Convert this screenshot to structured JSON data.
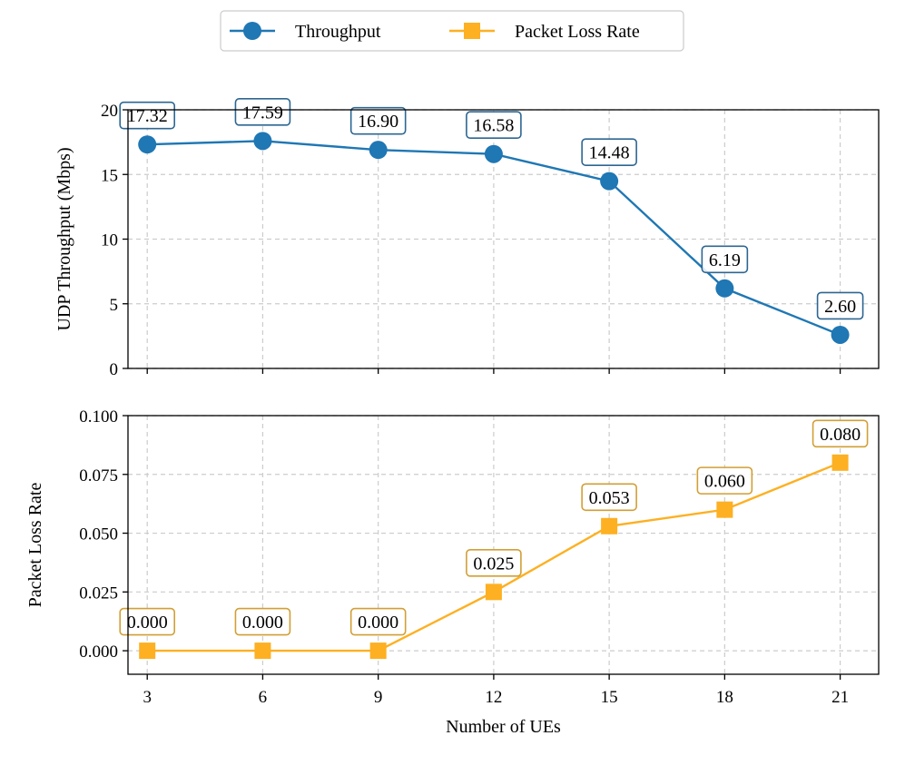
{
  "chart_data": {
    "type": "line",
    "xlabel": "Number of UEs",
    "x": [
      3,
      6,
      9,
      12,
      15,
      18,
      21
    ],
    "legend": {
      "placement": "top-center",
      "entries": [
        {
          "name": "Throughput",
          "color": "#1f77b4",
          "marker": "circle"
        },
        {
          "name": "Packet Loss Rate",
          "color": "#fdb022",
          "marker": "square"
        }
      ]
    },
    "panels": [
      {
        "ylabel": "UDP Throughput (Mbps)",
        "ylim": [
          0,
          20
        ],
        "yticks": [
          0,
          5,
          10,
          15,
          20
        ],
        "ytick_labels": [
          "0",
          "5",
          "10",
          "15",
          "20"
        ],
        "grid": true,
        "series": {
          "name": "Throughput",
          "color": "#1f77b4",
          "label_box_color": "#2c6692",
          "marker": "circle",
          "values": [
            17.32,
            17.59,
            16.9,
            16.58,
            14.48,
            6.19,
            2.6
          ],
          "labels": [
            "17.32",
            "17.59",
            "16.90",
            "16.58",
            "14.48",
            "6.19",
            "2.60"
          ]
        }
      },
      {
        "ylabel": "Packet Loss Rate",
        "ylim": [
          -0.01,
          0.1
        ],
        "yticks": [
          0,
          0.025,
          0.05,
          0.075,
          0.1
        ],
        "ytick_labels": [
          "0.000",
          "0.025",
          "0.050",
          "0.075",
          "0.100"
        ],
        "grid": true,
        "series": {
          "name": "Packet Loss Rate",
          "color": "#fdb022",
          "label_box_color": "#d19f35",
          "marker": "square",
          "values": [
            0.0,
            0.0,
            0.0,
            0.025,
            0.053,
            0.06,
            0.08
          ],
          "labels": [
            "0.000",
            "0.000",
            "0.000",
            "0.025",
            "0.053",
            "0.060",
            "0.080"
          ]
        }
      }
    ]
  }
}
